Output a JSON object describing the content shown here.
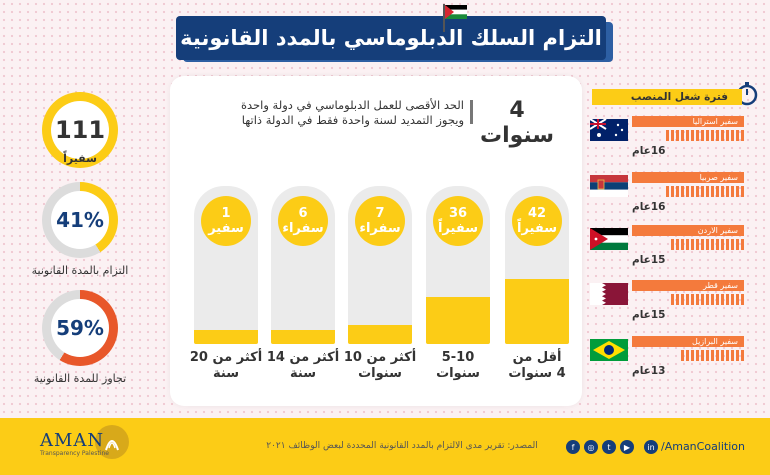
{
  "header": {
    "title": "التزام السلك الدبلوماسي بالمدد القانونية"
  },
  "rule": {
    "duration": "4 سنوات",
    "text_line1": "الحد الأقصى للعمل الدبلوماسي في دولة واحدة",
    "text_line2": "ويجوز التمديد لسنة واحدة فقط في الدولة ذاتها"
  },
  "columns": [
    {
      "count": "42",
      "unit": "سفيراً",
      "label1": "أقل من",
      "label2": "4 سنوات",
      "fill_fraction": 0.41
    },
    {
      "count": "36",
      "unit": "سفيراً",
      "label1": "5-10",
      "label2": "سنوات",
      "fill_fraction": 0.3
    },
    {
      "count": "7",
      "unit": "سفراء",
      "label1": "أكثر من 10",
      "label2": "سنوات",
      "fill_fraction": 0.12
    },
    {
      "count": "6",
      "unit": "سفراء",
      "label1": "أكثر من 14",
      "label2": "سنة",
      "fill_fraction": 0.09
    },
    {
      "count": "1",
      "unit": "سفير",
      "label1": "أكثر من 20",
      "label2": "سنة",
      "fill_fraction": 0.09
    }
  ],
  "stats": {
    "total": {
      "value": "111",
      "label": "سفيراً"
    },
    "compliance": {
      "value": "41%",
      "label": "التزام بالمدة القانونية",
      "percent": 41,
      "color": "#fccc16"
    },
    "exceed": {
      "value": "59%",
      "label": "تجاوز للمدة القانونية",
      "percent": 59,
      "color": "#e8572a"
    }
  },
  "term": {
    "title": "فترة شغل المنصب",
    "icon": "stopwatch-icon",
    "ambassadors": [
      {
        "name": "سفير استراليا",
        "years": "16عام",
        "flag": "australia",
        "ticks": 16
      },
      {
        "name": "سفير صربيا",
        "years": "16عام",
        "flag": "serbia",
        "ticks": 16
      },
      {
        "name": "سفير الاردن",
        "years": "15عام",
        "flag": "jordan",
        "ticks": 15
      },
      {
        "name": "سفير قطر",
        "years": "15عام",
        "flag": "qatar",
        "ticks": 15
      },
      {
        "name": "سفير البرازيل",
        "years": "13عام",
        "flag": "brazil",
        "ticks": 13
      }
    ]
  },
  "footer": {
    "source": "المصدر: تقرير مدى الالتزام بالمدد القانونية المحددة لبعض الوظائف ٢٠٢١",
    "handle": "/AmanCoalition",
    "org_name": "AMAN",
    "org_sub": "Transparency Palestine",
    "social": [
      "facebook-icon",
      "instagram-icon",
      "twitter-icon",
      "youtube-icon",
      "linkedin-icon"
    ]
  },
  "colors": {
    "navy": "#153e7a",
    "yellow": "#fccc16",
    "orange": "#f47a3c"
  }
}
